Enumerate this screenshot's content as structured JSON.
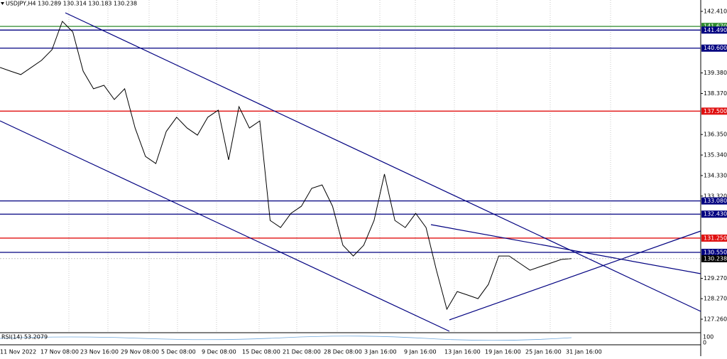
{
  "chart_data": {
    "type": "line",
    "title": "USDJPY,H4  130.289 130.314 130.183 130.238",
    "indicator": "RSI(14) 53.2079",
    "indicator_ticks": [
      "100",
      "0"
    ],
    "color": "#000000",
    "ylim": [
      127.26,
      142.41
    ],
    "yticks": [
      {
        "value": 142.41,
        "label": "142.410"
      },
      {
        "value": 139.38,
        "label": "139.380"
      },
      {
        "value": 138.37,
        "label": "138.370"
      },
      {
        "value": 136.35,
        "label": "136.350"
      },
      {
        "value": 135.34,
        "label": "135.340"
      },
      {
        "value": 134.33,
        "label": "134.330"
      },
      {
        "value": 133.32,
        "label": "133.320"
      },
      {
        "value": 129.27,
        "label": "129.270"
      },
      {
        "value": 128.27,
        "label": "128.270"
      },
      {
        "value": 127.26,
        "label": "127.260"
      }
    ],
    "x_labels": [
      "11 Nov 2022",
      "17 Nov 08:00",
      "23 Nov 16:00",
      "29 Nov 08:00",
      "5 Dec 08:00",
      "9 Dec 08:00",
      "15 Dec 08:00",
      "21 Dec 08:00",
      "28 Dec 08:00",
      "3 Jan 16:00",
      "9 Jan 16:00",
      "13 Jan 16:00",
      "19 Jan 16:00",
      "25 Jan 16:00",
      "31 Jan 16:00"
    ],
    "grid": true,
    "levels": [
      {
        "value": 141.67,
        "label": "141.670",
        "color": "#2e8b2e"
      },
      {
        "value": 141.49,
        "label": "141.490",
        "color": "#000080"
      },
      {
        "value": 140.6,
        "label": "140.600",
        "color": "#000080"
      },
      {
        "value": 137.5,
        "label": "137.500",
        "color": "#e01010"
      },
      {
        "value": 133.08,
        "label": "133.080",
        "color": "#000080"
      },
      {
        "value": 132.43,
        "label": "132.430",
        "color": "#000080"
      },
      {
        "value": 131.25,
        "label": "131.250",
        "color": "#e01010"
      },
      {
        "value": 130.55,
        "label": "130.550",
        "color": "#000080"
      }
    ],
    "current_price": {
      "value": 130.238,
      "label": "130.238"
    },
    "values": [
      139.65,
      139.47,
      139.3,
      139.65,
      140.0,
      140.52,
      141.92,
      141.4,
      139.47,
      138.6,
      138.77,
      138.07,
      138.6,
      136.67,
      135.27,
      134.92,
      136.5,
      137.2,
      136.67,
      136.32,
      137.2,
      137.55,
      135.1,
      137.72,
      136.67,
      137.02,
      132.12,
      131.77,
      132.47,
      132.82,
      133.7,
      133.87,
      132.82,
      130.9,
      130.37,
      130.9,
      132.12,
      134.4,
      132.12,
      131.77,
      132.47,
      131.77,
      129.67,
      127.75,
      128.62,
      128.45,
      128.27,
      128.97,
      130.37,
      130.37,
      130.02,
      129.67,
      129.85,
      130.02,
      130.2,
      130.24
    ]
  }
}
